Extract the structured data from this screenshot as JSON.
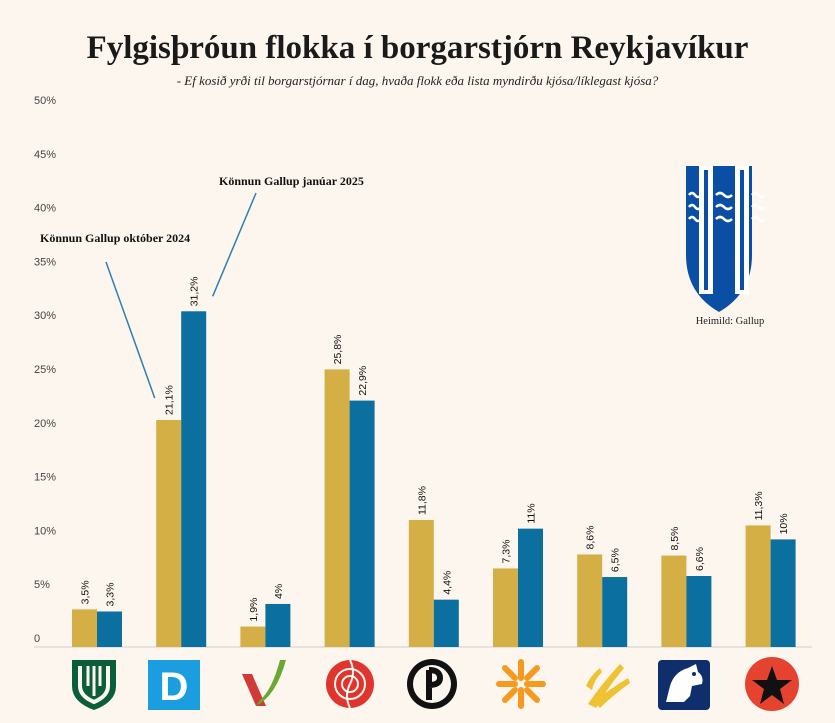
{
  "title": "Fylgisþróun flokka í borgarstjórn Reykjavíkur",
  "subtitle": "- Ef kosið yrði til borgarstjórnar í dag, hvaða flokk eða lista myndirðu kjósa/líklegast kjósa?",
  "source": "Heimild: Gallup",
  "logos": [
    "framsokn-logo",
    "sjalfstaedisflokkur-logo",
    "vinstri-graen-logo",
    "samfylking-logo",
    "piratar-logo",
    "vidreisn-logo",
    "flokkur-folksins-logo",
    "midflokkur-logo",
    "sosialistaflokkur-logo"
  ],
  "logo_text": {
    "sjalfstaedisflokkur": "D"
  },
  "chart_data": {
    "type": "bar",
    "title": "Fylgisþróun flokka í borgarstjórn Reykjavíkur",
    "ylim": [
      0,
      50
    ],
    "yticks": [
      0,
      5,
      10,
      15,
      20,
      25,
      30,
      35,
      40,
      45,
      50
    ],
    "ytick_labels": [
      "0",
      "5%",
      "10%",
      "15%",
      "20%",
      "25%",
      "30%",
      "35%",
      "40%",
      "45%",
      "50%"
    ],
    "grid": false,
    "categories": [
      "",
      "",
      "",
      "",
      "",
      "",
      "",
      "",
      ""
    ],
    "series": [
      {
        "name": "Könnun Gallup október 2024",
        "color": "#d4af46",
        "values": [
          3.5,
          21.1,
          1.9,
          25.8,
          11.8,
          7.3,
          8.6,
          8.5,
          11.3
        ],
        "labels": [
          "3,5%",
          "21,1%",
          "1,9%",
          "25,8%",
          "11,8%",
          "7,3%",
          "8,6%",
          "8,5%",
          "11,3%"
        ]
      },
      {
        "name": "Könnun Gallup janúar 2025",
        "color": "#0b6fa0",
        "values": [
          3.3,
          31.2,
          4,
          22.9,
          4.4,
          11,
          6.5,
          6.6,
          10
        ],
        "labels": [
          "3,3%",
          "31,2%",
          "4%",
          "22,9%",
          "4,4%",
          "11%",
          "6,5%",
          "6,6%",
          "10%"
        ]
      }
    ],
    "annotations": [
      "Könnun Gallup október 2024",
      "Könnun Gallup janúar 2025"
    ]
  }
}
